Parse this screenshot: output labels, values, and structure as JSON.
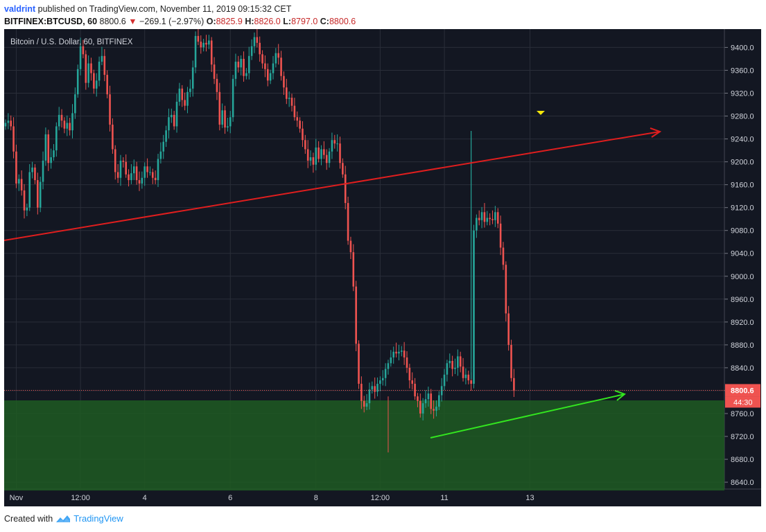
{
  "header": {
    "user": "valdrint",
    "published_text": "published on TradingView.com, November 11, 2019 09:15:32 CET",
    "symbol": "BITFINEX:BTCUSD, 60",
    "last": "8800.6",
    "change": "−269.1 (−2.97%)",
    "o_label": "O:",
    "o_val": "8825.9",
    "h_label": "H:",
    "h_val": "8826.0",
    "l_label": "L:",
    "l_val": "8797.0",
    "c_label": "C:",
    "c_val": "8800.6"
  },
  "chart_title": "Bitcoin / U.S. Dollar, 60, BITFINEX",
  "price_badge": "8800.6",
  "countdown_badge": "44:30",
  "footer": {
    "created": "Created with",
    "brand": "TradingView"
  },
  "colors": {
    "background": "#131722",
    "grid": "#2a2e39",
    "up": "#26a69a",
    "down": "#ef5350",
    "trendline_red": "#e01e1e",
    "trendline_green": "#33e61f",
    "zone": "#1e5a22",
    "marker": "#f5e70a"
  },
  "chart_data": {
    "type": "candlestick",
    "title": "Bitcoin / U.S. Dollar, 60, BITFINEX",
    "xlabel": "",
    "ylabel": "",
    "ylim": [
      8628,
      9432
    ],
    "grid": true,
    "y_ticks": [
      8640,
      8680,
      8720,
      8760,
      8800,
      8840,
      8880,
      8920,
      8960,
      9000,
      9040,
      9080,
      9120,
      9160,
      9200,
      9240,
      9280,
      9320,
      9360,
      9400
    ],
    "x_ticks": [
      {
        "label": "Nov",
        "index": 4
      },
      {
        "label": "12:00",
        "index": 28
      },
      {
        "label": "4",
        "index": 52
      },
      {
        "label": "6",
        "index": 84
      },
      {
        "label": "8",
        "index": 116
      },
      {
        "label": "12:00",
        "index": 140
      },
      {
        "label": "11",
        "index": 164
      },
      {
        "label": "13",
        "index": 196
      }
    ],
    "close": [
      9268,
      9272,
      9262,
      9218,
      9162,
      9170,
      9150,
      9115,
      9120,
      9182,
      9190,
      9168,
      9120,
      9165,
      9202,
      9248,
      9198,
      9208,
      9220,
      9262,
      9282,
      9272,
      9258,
      9268,
      9255,
      9285,
      9318,
      9362,
      9402,
      9388,
      9338,
      9372,
      9355,
      9328,
      9342,
      9375,
      9385,
      9352,
      9318,
      9265,
      9222,
      9182,
      9172,
      9202,
      9200,
      9178,
      9168,
      9180,
      9192,
      9168,
      9162,
      9172,
      9192,
      9182,
      9182,
      9172,
      9168,
      9205,
      9218,
      9235,
      9255,
      9278,
      9282,
      9262,
      9305,
      9328,
      9308,
      9298,
      9322,
      9328,
      9365,
      9420,
      9410,
      9400,
      9408,
      9405,
      9412,
      9370,
      9345,
      9322,
      9265,
      9290,
      9260,
      9262,
      9278,
      9345,
      9375,
      9365,
      9380,
      9350,
      9355,
      9385,
      9402,
      9418,
      9408,
      9388,
      9372,
      9362,
      9342,
      9355,
      9372,
      9390,
      9382,
      9350,
      9330,
      9310,
      9312,
      9298,
      9278,
      9272,
      9258,
      9238,
      9222,
      9202,
      9208,
      9195,
      9225,
      9205,
      9222,
      9212,
      9198,
      9218,
      9238,
      9232,
      9232,
      9198,
      9178,
      9128,
      9062,
      9042,
      8982,
      8882,
      8812,
      8782,
      8772,
      8778,
      8802,
      8808,
      8798,
      8812,
      8818,
      8822,
      8838,
      8848,
      8858,
      8868,
      8865,
      8868,
      8870,
      8858,
      8840,
      8818,
      8812,
      8790,
      8782,
      8760,
      8778,
      8785,
      8795,
      8768,
      8765,
      8772,
      8792,
      8808,
      8828,
      8848,
      8852,
      8838,
      8840,
      8860,
      8842,
      8822,
      8828,
      8818,
      8812,
      9080,
      9102,
      9098,
      9112,
      9095,
      9102,
      9100,
      9098,
      9112,
      9092,
      9050,
      9020,
      8935,
      8880,
      8822,
      8800
    ],
    "ticks": [
      "Nov",
      "12:00",
      "4",
      "6",
      "8",
      "12:00",
      "11",
      "13"
    ],
    "indicators": {
      "resistance_line": "red ascending trendline",
      "support_line": "green ascending trendline",
      "support_zone": [
        8640,
        8783
      ],
      "current_price_line": 8800.6
    }
  }
}
